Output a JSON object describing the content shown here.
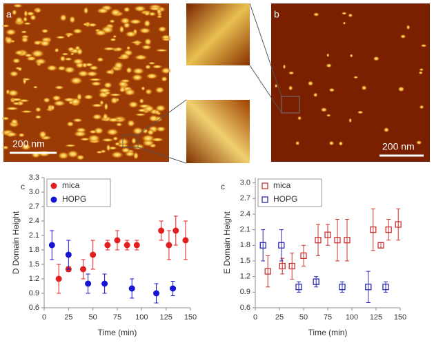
{
  "images": {
    "a": {
      "label": "a",
      "scale": "200 nm"
    },
    "b": {
      "label": "b",
      "scale": "200 nm"
    }
  },
  "chart_data": [
    {
      "type": "scatter",
      "panel": "c",
      "y_label": "D Domain Height",
      "x_label": "Time (min)",
      "xlim": [
        0,
        150
      ],
      "xticks": [
        0,
        25,
        50,
        75,
        100,
        125,
        150
      ],
      "ylim": [
        0.6,
        3.3
      ],
      "yticks": [
        0.6,
        0.9,
        1.2,
        1.5,
        1.8,
        2.1,
        2.4,
        2.7,
        {
          "value": 3.0,
          "label": "3.0"
        },
        3.3
      ],
      "marker": "circle",
      "legend": "upper left",
      "series": [
        {
          "name": "mica",
          "color": "#e02020",
          "x": [
            15,
            25,
            40,
            50,
            65,
            75,
            85,
            95,
            120,
            128,
            135,
            145
          ],
          "values": [
            1.2,
            1.4,
            1.4,
            1.7,
            1.9,
            2.0,
            1.9,
            1.9,
            2.2,
            1.9,
            2.2,
            2.0
          ],
          "errors": [
            0.3,
            0.05,
            0.2,
            0.3,
            0.1,
            0.2,
            0.1,
            0.1,
            0.2,
            0.3,
            0.3,
            0.4
          ]
        },
        {
          "name": "HOPG",
          "color": "#1414d2",
          "x": [
            8,
            25,
            45,
            62,
            90,
            115,
            132
          ],
          "values": [
            1.9,
            1.7,
            1.1,
            1.1,
            1.0,
            0.9,
            1.0
          ],
          "errors": [
            0.3,
            0.3,
            0.2,
            0.2,
            0.2,
            0.2,
            0.15
          ]
        }
      ]
    },
    {
      "type": "scatter",
      "panel": "c",
      "y_label": "E Domain Height",
      "x_label": "Time (min)",
      "xlim": [
        0,
        150
      ],
      "xticks": [
        0,
        25,
        50,
        75,
        100,
        125,
        150
      ],
      "ylim": [
        0.6,
        3.1
      ],
      "yticks": [
        0.6,
        0.9,
        1.2,
        1.5,
        1.8,
        2.1,
        2.4,
        2.7,
        {
          "value": 3.0,
          "label": "3.0"
        }
      ],
      "marker": "square-open",
      "legend": "upper left",
      "series": [
        {
          "name": "mica",
          "color": "#c83232",
          "x": [
            13,
            28,
            38,
            50,
            65,
            75,
            85,
            95,
            122,
            130,
            138,
            148
          ],
          "values": [
            1.3,
            1.4,
            1.4,
            1.6,
            1.9,
            2.0,
            1.9,
            1.9,
            2.1,
            1.8,
            2.1,
            2.2
          ],
          "errors": [
            0.3,
            0.15,
            0.25,
            0.2,
            0.3,
            0.2,
            0.4,
            0.4,
            0.4,
            0.05,
            0.2,
            0.3
          ]
        },
        {
          "name": "HOPG",
          "color": "#2a2ab4",
          "x": [
            8,
            27,
            45,
            63,
            90,
            117,
            135
          ],
          "values": [
            1.8,
            1.8,
            1.0,
            1.1,
            1.0,
            1.0,
            1.0
          ],
          "errors": [
            0.3,
            0.3,
            0.1,
            0.1,
            0.1,
            0.3,
            0.1
          ]
        }
      ]
    }
  ]
}
